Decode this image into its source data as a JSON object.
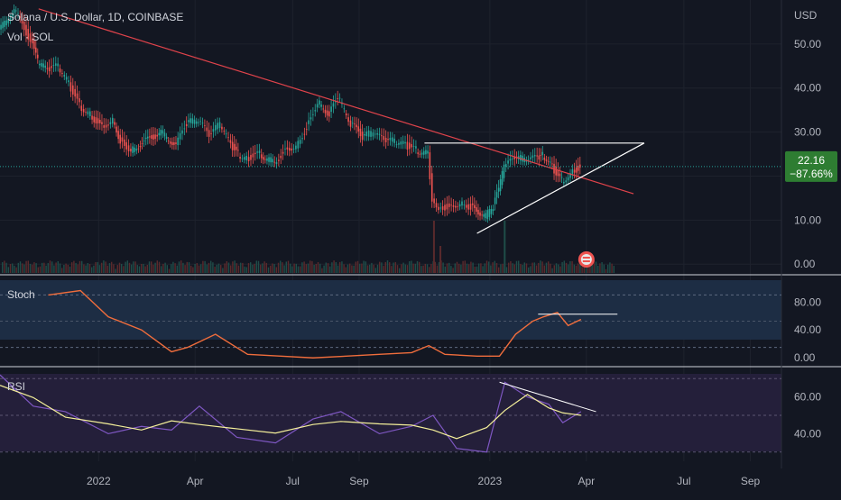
{
  "header": {
    "symbol_line": "Solana / U.S. Dollar, 1D, COINBASE",
    "volume_line": "Vol · SOL"
  },
  "price_axis": {
    "currency": "USD",
    "ticks": [
      "50.00",
      "40.00",
      "30.00",
      "20.00",
      "10.00",
      "0.00"
    ]
  },
  "last_price": {
    "value": "22.16",
    "change": "−87.66%"
  },
  "colors": {
    "up": "#26a69a",
    "down": "#ef5350",
    "trendline": "#e0434b",
    "stoch_k": "#f06d3c",
    "rsi": "#7e57c2",
    "rsi_ma": "#f5f09a",
    "price_tag": "#2e7d32"
  },
  "stoch": {
    "label": "Stoch",
    "ticks": [
      "80.00",
      "40.00",
      "0.00"
    ]
  },
  "rsi": {
    "label": "RSI",
    "ticks": [
      "60.00",
      "40.00"
    ]
  },
  "time_axis": {
    "labels": [
      "2022",
      "Apr",
      "Jul",
      "Sep",
      "2023",
      "Apr",
      "Jul",
      "Sep"
    ]
  },
  "chart_data": {
    "type": "candlestick",
    "symbol": "SOL/USD",
    "interval": "1D",
    "exchange": "COINBASE",
    "x_range": [
      "2021-10-01",
      "2023-09-30"
    ],
    "ylim": [
      -2,
      60
    ],
    "series": [
      {
        "name": "Close (approx, sampled)",
        "x": [
          "2021-10-01",
          "2021-10-15",
          "2021-11-01",
          "2021-11-06",
          "2021-11-15",
          "2021-11-25",
          "2021-12-05",
          "2021-12-15",
          "2021-12-25",
          "2022-01-05",
          "2022-01-15",
          "2022-01-22",
          "2022-02-01",
          "2022-02-15",
          "2022-03-01",
          "2022-03-15",
          "2022-03-25",
          "2022-04-05",
          "2022-04-15",
          "2022-04-25",
          "2022-05-05",
          "2022-05-12",
          "2022-05-20",
          "2022-06-01",
          "2022-06-15",
          "2022-06-25",
          "2022-07-05",
          "2022-07-15",
          "2022-07-25",
          "2022-08-05",
          "2022-08-13",
          "2022-08-25",
          "2022-09-05",
          "2022-09-15",
          "2022-09-25",
          "2022-10-05",
          "2022-10-15",
          "2022-10-25",
          "2022-11-05",
          "2022-11-09",
          "2022-11-15",
          "2022-11-25",
          "2022-12-05",
          "2022-12-15",
          "2022-12-29",
          "2023-01-05",
          "2023-01-10",
          "2023-01-15",
          "2023-01-25",
          "2023-02-05",
          "2023-02-15",
          "2023-02-20",
          "2023-03-01",
          "2023-03-10",
          "2023-03-20",
          "2023-03-27"
        ],
        "y": [
          53,
          58,
          50,
          46,
          44,
          45,
          41,
          36,
          34,
          31,
          33,
          28,
          26,
          28,
          30,
          27,
          32,
          33,
          29,
          32,
          27,
          25,
          24,
          25,
          23,
          26,
          27,
          31,
          37,
          34,
          38,
          32,
          29,
          30,
          28,
          28,
          27,
          26,
          25,
          15,
          13,
          13,
          14,
          13,
          11,
          13,
          17,
          22,
          24,
          24,
          24,
          25,
          22,
          19,
          21,
          22.16
        ]
      }
    ],
    "volume_series": {
      "name": "Volume",
      "x": [
        "2022-11-09",
        "2022-11-15",
        "2023-01-14"
      ],
      "y": [
        "spike",
        "moderate",
        "spike"
      ]
    },
    "annotations": [
      {
        "type": "trendline",
        "color": "#e0434b",
        "from": [
          "2021-11-06",
          58
        ],
        "to": [
          "2023-05-15",
          16
        ]
      },
      {
        "type": "triangle_upper",
        "color": "#ffffff",
        "from": [
          "2022-11-01",
          27.5
        ],
        "to": [
          "2023-05-25",
          27.5
        ]
      },
      {
        "type": "triangle_lower",
        "color": "#ffffff",
        "from": [
          "2022-12-20",
          7
        ],
        "to": [
          "2023-05-25",
          27.5
        ]
      },
      {
        "type": "last_price",
        "value": 22.16,
        "change_pct": -87.66
      }
    ],
    "indicators": {
      "stoch": {
        "ylim": [
          0,
          100
        ],
        "bands": [
          20,
          80
        ],
        "x": [
          "2021-11-15",
          "2021-12-15",
          "2022-01-10",
          "2022-02-10",
          "2022-03-10",
          "2022-03-25",
          "2022-04-20",
          "2022-05-20",
          "2022-06-20",
          "2022-07-20",
          "2022-08-20",
          "2022-09-20",
          "2022-10-20",
          "2022-11-05",
          "2022-11-20",
          "2022-12-20",
          "2023-01-10",
          "2023-01-25",
          "2023-02-10",
          "2023-02-20",
          "2023-03-05",
          "2023-03-15",
          "2023-03-27"
        ],
        "y": [
          80,
          85,
          55,
          40,
          15,
          20,
          35,
          12,
          10,
          8,
          10,
          12,
          14,
          22,
          12,
          10,
          10,
          35,
          50,
          55,
          60,
          45,
          52
        ]
      },
      "rsi": {
        "ylim": [
          25,
          75
        ],
        "bands": [
          30,
          50,
          70
        ],
        "x": [
          "2021-10-01",
          "2021-11-01",
          "2021-12-01",
          "2022-01-10",
          "2022-02-10",
          "2022-03-10",
          "2022-04-05",
          "2022-05-10",
          "2022-06-15",
          "2022-07-20",
          "2022-08-15",
          "2022-09-20",
          "2022-10-20",
          "2022-11-09",
          "2022-12-01",
          "2022-12-29",
          "2023-01-15",
          "2023-02-05",
          "2023-02-25",
          "2023-03-10",
          "2023-03-27"
        ],
        "y": [
          72,
          55,
          52,
          40,
          44,
          42,
          55,
          38,
          35,
          48,
          52,
          40,
          44,
          50,
          32,
          30,
          68,
          60,
          56,
          46,
          52
        ]
      },
      "rsi_ma_trend": {
        "from": [
          "2023-01-10",
          68
        ],
        "to": [
          "2023-04-10",
          52
        ]
      },
      "stoch_level": {
        "from": [
          "2023-02-15",
          58
        ],
        "to": [
          "2023-04-30",
          58
        ]
      }
    }
  }
}
